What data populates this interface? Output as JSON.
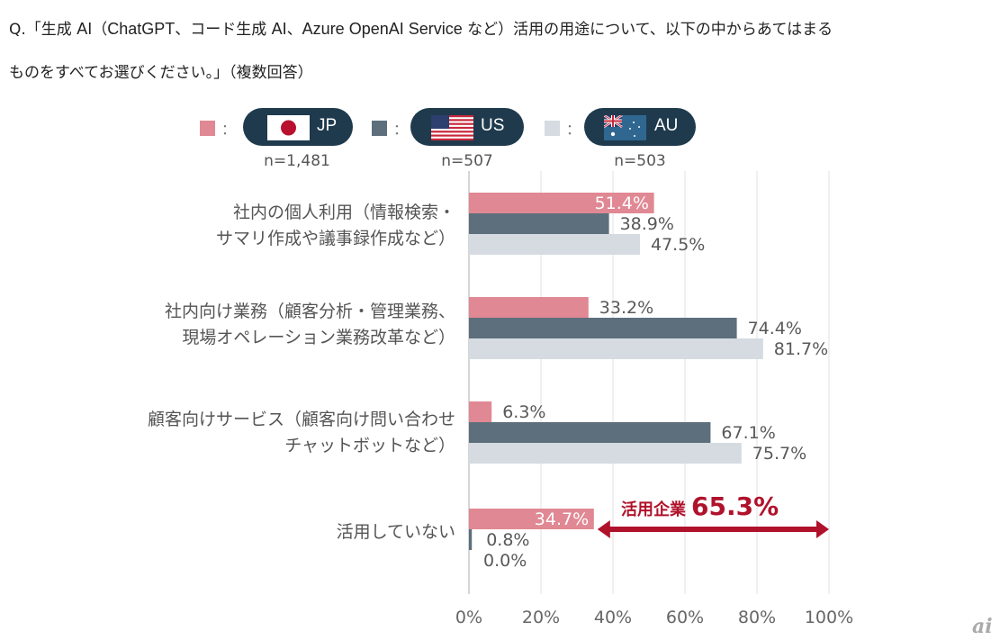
{
  "question": {
    "line1_prefix": "Q.「生成 ",
    "line1_ai1": "AI",
    "line1_paren_open": "（",
    "line1_chatgpt": "ChatGPT",
    "line1_mid": "、コード生成 ",
    "line1_ai2": "AI",
    "line1_comma": "、",
    "line1_azure": "Azure OpenAI Service",
    "line1_rest": " など）活用の用途について、以下の中からあてはまる",
    "line2": "ものをすべてお選びください。」（複数回答）"
  },
  "legend": [
    {
      "key": "jp",
      "code": "JP",
      "n": "n=1,481",
      "color": "#e08893",
      "colon": "："
    },
    {
      "key": "us",
      "code": "US",
      "n": "n=507",
      "color": "#5d6f7c",
      "colon": "："
    },
    {
      "key": "au",
      "code": "AU",
      "n": "n=503",
      "color": "#d5dbe0",
      "colon": "："
    }
  ],
  "chart_data": {
    "type": "bar",
    "orientation": "horizontal",
    "categories": [
      [
        "社内の個人利用（情報検索・",
        "サマリ作成や議事録作成など）"
      ],
      [
        "社内向け業務（顧客分析・管理業務、",
        "現場オペレーション業務改革など）"
      ],
      [
        "顧客向けサービス（顧客向け問い合わせ",
        "チャットボットなど）"
      ],
      [
        "活用していない"
      ]
    ],
    "series": [
      {
        "name": "JP",
        "color": "#e08893",
        "values": [
          51.4,
          33.2,
          6.3,
          34.7
        ],
        "labels": [
          "51.4%",
          "33.2%",
          "6.3%",
          "34.7%"
        ]
      },
      {
        "name": "US",
        "color": "#5d6f7c",
        "values": [
          38.9,
          74.4,
          67.1,
          0.8
        ],
        "labels": [
          "38.9%",
          "74.4%",
          "67.1%",
          "0.8%"
        ]
      },
      {
        "name": "AU",
        "color": "#d5dbe0",
        "values": [
          47.5,
          81.7,
          75.7,
          0.0
        ],
        "labels": [
          "47.5%",
          "81.7%",
          "75.7%",
          "0.0%"
        ]
      }
    ],
    "xlim": [
      0,
      100
    ],
    "xticks": [
      0,
      20,
      40,
      60,
      80,
      100
    ],
    "xtick_labels": [
      "0%",
      "20%",
      "40%",
      "60%",
      "80%",
      "100%"
    ],
    "grid": true,
    "legend_position": "top",
    "annotation": {
      "label": "活用企業",
      "value": "65.3%",
      "color": "#b0122b",
      "from": 34.7,
      "to": 100
    }
  },
  "watermark": "ai"
}
